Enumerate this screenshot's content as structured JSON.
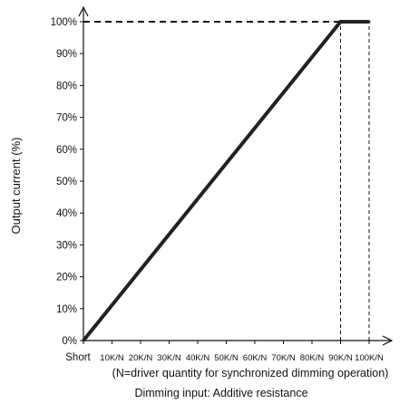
{
  "chart_data": {
    "type": "line",
    "title": "",
    "ylabel": "Output current (%)",
    "xlabel": "Dimming input: Additive resistance",
    "note": "(N=driver quantity for synchronized dimming operation)",
    "x_ticks": [
      "Short",
      "10K/N",
      "20K/N",
      "30K/N",
      "40K/N",
      "50K/N",
      "60K/N",
      "70K/N",
      "80K/N",
      "90K/N",
      "100K/N"
    ],
    "y_ticks": [
      "0%",
      "10%",
      "20%",
      "30%",
      "40%",
      "50%",
      "60%",
      "70%",
      "80%",
      "90%",
      "100%"
    ],
    "xlim": [
      0,
      100
    ],
    "ylim": [
      0,
      100
    ],
    "series": [
      {
        "x": [
          0,
          90,
          100
        ],
        "y": [
          0,
          100,
          100
        ]
      }
    ],
    "reference_lines": [
      {
        "style": "dashed",
        "orientation": "horizontal",
        "y": 100,
        "x_from": 0,
        "x_to": 90
      },
      {
        "style": "dashed",
        "orientation": "vertical",
        "x": 90,
        "y_from": 0,
        "y_to": 100
      },
      {
        "style": "dashed",
        "orientation": "vertical",
        "x": 100,
        "y_from": 0,
        "y_to": 100
      }
    ],
    "grid": false,
    "legend": "none",
    "line_color": "#222222"
  }
}
